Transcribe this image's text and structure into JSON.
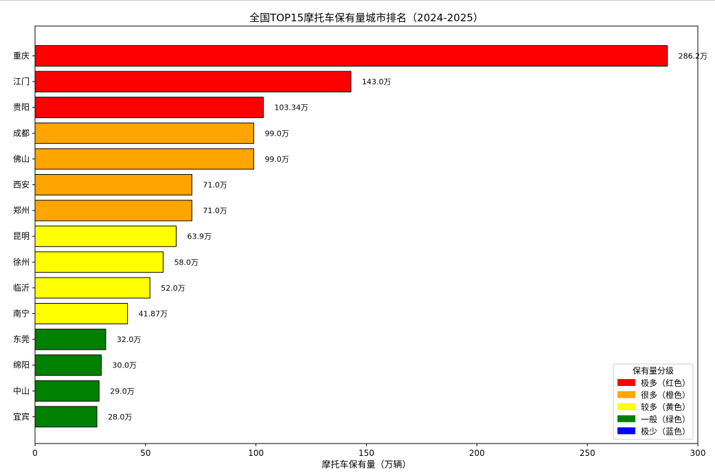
{
  "chart_data": {
    "type": "bar",
    "orientation": "horizontal",
    "title": "全国TOP15摩托车保有量城市排名（2024-2025）",
    "xlabel": "摩托车保有量（万辆）",
    "ylabel": "",
    "xlim": [
      0,
      300
    ],
    "xticks": [
      0,
      50,
      100,
      150,
      200,
      250,
      300
    ],
    "value_suffix": "万",
    "grid": false,
    "categories": [
      "重庆",
      "江门",
      "贵阳",
      "成都",
      "佛山",
      "西安",
      "郑州",
      "昆明",
      "徐州",
      "临沂",
      "南宁",
      "东莞",
      "绵阳",
      "中山",
      "宜宾"
    ],
    "values": [
      286.2,
      143.0,
      103.34,
      99.0,
      99.0,
      71.0,
      71.0,
      63.9,
      58.0,
      52.0,
      41.87,
      32.0,
      30.0,
      29.0,
      28.0
    ],
    "data_labels": [
      "286.2万",
      "143.0万",
      "103.34万",
      "99.0万",
      "99.0万",
      "71.0万",
      "71.0万",
      "63.9万",
      "58.0万",
      "52.0万",
      "41.87万",
      "32.0万",
      "30.0万",
      "29.0万",
      "28.0万"
    ],
    "bar_classes": [
      "red",
      "red",
      "red",
      "orange",
      "orange",
      "orange",
      "orange",
      "yellow",
      "yellow",
      "yellow",
      "yellow",
      "green",
      "green",
      "green",
      "green"
    ],
    "legend": {
      "title": "保有量分级",
      "placement": "bottom-right",
      "entries": [
        {
          "label": "极多（红色）",
          "key": "red"
        },
        {
          "label": "很多（橙色）",
          "key": "orange"
        },
        {
          "label": "较多（黄色）",
          "key": "yellow"
        },
        {
          "label": "一般（绿色）",
          "key": "green"
        },
        {
          "label": "极少（蓝色）",
          "key": "blue"
        }
      ]
    },
    "colors": {
      "red": "#ff0000",
      "orange": "#ffa500",
      "yellow": "#ffff00",
      "green": "#008000",
      "blue": "#0000ff"
    }
  }
}
